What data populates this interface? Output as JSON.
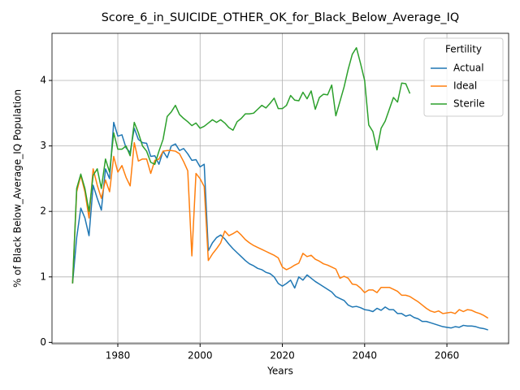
{
  "chart_data": {
    "type": "line",
    "title": "Score_6_in_SUICIDE_OTHER_OK_for_Black_Below_Average_IQ",
    "x_label": "Years",
    "y_label": "% of Black Below_Average_IQ Population",
    "legend_title": "Fertility",
    "legend_position": "upper right",
    "grid": true,
    "xlim": [
      1964,
      2075
    ],
    "ylim": [
      -0.02,
      4.72
    ],
    "xticks": [
      1980,
      2000,
      2020,
      2040,
      2060
    ],
    "yticks": [
      0,
      1,
      2,
      3,
      4
    ],
    "x": [
      1969,
      1970,
      1971,
      1972,
      1973,
      1974,
      1975,
      1976,
      1977,
      1978,
      1979,
      1980,
      1981,
      1982,
      1983,
      1984,
      1985,
      1986,
      1987,
      1988,
      1989,
      1990,
      1991,
      1992,
      1993,
      1994,
      1995,
      1996,
      1997,
      1998,
      1999,
      2000,
      2001,
      2002,
      2003,
      2004,
      2005,
      2006,
      2007,
      2008,
      2009,
      2010,
      2011,
      2012,
      2013,
      2014,
      2015,
      2016,
      2017,
      2018,
      2019,
      2020,
      2021,
      2022,
      2023,
      2024,
      2025,
      2026,
      2027,
      2028,
      2029,
      2030,
      2031,
      2032,
      2033,
      2034,
      2035,
      2036,
      2037,
      2038,
      2039,
      2040,
      2041,
      2042,
      2043,
      2044,
      2045,
      2046,
      2047,
      2048,
      2049,
      2050,
      2051,
      2052,
      2053,
      2054,
      2055,
      2056,
      2057,
      2058,
      2059,
      2060,
      2061,
      2062,
      2063,
      2064,
      2065,
      2066,
      2067,
      2068,
      2069,
      2070
    ],
    "series": [
      {
        "name": "Actual",
        "color": "#1f77b4",
        "values": [
          0.9,
          1.6,
          2.05,
          1.9,
          1.63,
          2.4,
          2.2,
          2.02,
          2.65,
          2.5,
          3.36,
          3.15,
          3.17,
          2.97,
          2.9,
          3.27,
          3.1,
          3.05,
          3.04,
          2.84,
          2.85,
          2.72,
          2.92,
          2.82,
          3.0,
          3.03,
          2.93,
          2.96,
          2.88,
          2.78,
          2.79,
          2.68,
          2.72,
          1.4,
          1.52,
          1.6,
          1.64,
          1.58,
          1.5,
          1.43,
          1.37,
          1.31,
          1.25,
          1.2,
          1.17,
          1.13,
          1.11,
          1.07,
          1.05,
          1.0,
          0.9,
          0.86,
          0.9,
          0.95,
          0.83,
          1.0,
          0.95,
          1.03,
          0.98,
          0.93,
          0.89,
          0.85,
          0.81,
          0.77,
          0.7,
          0.67,
          0.64,
          0.57,
          0.54,
          0.55,
          0.53,
          0.5,
          0.49,
          0.47,
          0.52,
          0.49,
          0.54,
          0.5,
          0.5,
          0.44,
          0.44,
          0.4,
          0.42,
          0.38,
          0.36,
          0.32,
          0.32,
          0.3,
          0.28,
          0.26,
          0.24,
          0.23,
          0.22,
          0.24,
          0.23,
          0.26,
          0.25,
          0.25,
          0.24,
          0.22,
          0.21,
          0.19
        ]
      },
      {
        "name": "Ideal",
        "color": "#ff7f0e",
        "values": [
          0.9,
          2.3,
          2.55,
          2.3,
          1.9,
          2.65,
          2.4,
          2.2,
          2.48,
          2.3,
          2.84,
          2.6,
          2.7,
          2.52,
          2.39,
          3.05,
          2.77,
          2.8,
          2.8,
          2.58,
          2.78,
          2.8,
          2.92,
          2.93,
          2.93,
          2.92,
          2.88,
          2.76,
          2.62,
          1.32,
          2.58,
          2.5,
          2.38,
          1.25,
          1.35,
          1.43,
          1.52,
          1.7,
          1.63,
          1.66,
          1.7,
          1.64,
          1.57,
          1.52,
          1.48,
          1.45,
          1.42,
          1.39,
          1.36,
          1.33,
          1.29,
          1.15,
          1.11,
          1.14,
          1.18,
          1.21,
          1.36,
          1.31,
          1.33,
          1.27,
          1.24,
          1.2,
          1.18,
          1.15,
          1.12,
          0.98,
          1.01,
          0.98,
          0.89,
          0.88,
          0.83,
          0.76,
          0.8,
          0.8,
          0.76,
          0.84,
          0.84,
          0.84,
          0.81,
          0.78,
          0.72,
          0.72,
          0.7,
          0.66,
          0.62,
          0.57,
          0.52,
          0.48,
          0.46,
          0.48,
          0.44,
          0.45,
          0.46,
          0.44,
          0.5,
          0.47,
          0.5,
          0.49,
          0.46,
          0.44,
          0.41,
          0.37
        ]
      },
      {
        "name": "Sterile",
        "color": "#2ca02c",
        "values": [
          0.9,
          2.35,
          2.57,
          2.35,
          2.0,
          2.55,
          2.65,
          2.35,
          2.8,
          2.6,
          3.2,
          2.95,
          2.95,
          3.0,
          2.85,
          3.36,
          3.2,
          3.0,
          2.92,
          2.75,
          2.72,
          2.92,
          3.1,
          3.45,
          3.52,
          3.62,
          3.48,
          3.42,
          3.37,
          3.31,
          3.35,
          3.27,
          3.3,
          3.35,
          3.4,
          3.36,
          3.4,
          3.35,
          3.28,
          3.24,
          3.37,
          3.42,
          3.49,
          3.49,
          3.5,
          3.56,
          3.62,
          3.58,
          3.65,
          3.73,
          3.57,
          3.57,
          3.62,
          3.77,
          3.7,
          3.69,
          3.82,
          3.72,
          3.84,
          3.56,
          3.74,
          3.79,
          3.78,
          3.93,
          3.46,
          3.68,
          3.9,
          4.17,
          4.4,
          4.5,
          4.26,
          4.0,
          3.32,
          3.22,
          2.94,
          3.27,
          3.38,
          3.56,
          3.74,
          3.67,
          3.96,
          3.95,
          3.8,
          null,
          null,
          null,
          null,
          null,
          null,
          null,
          null,
          null,
          null,
          null,
          null,
          null,
          null,
          null,
          null,
          null,
          null,
          null
        ]
      }
    ]
  }
}
